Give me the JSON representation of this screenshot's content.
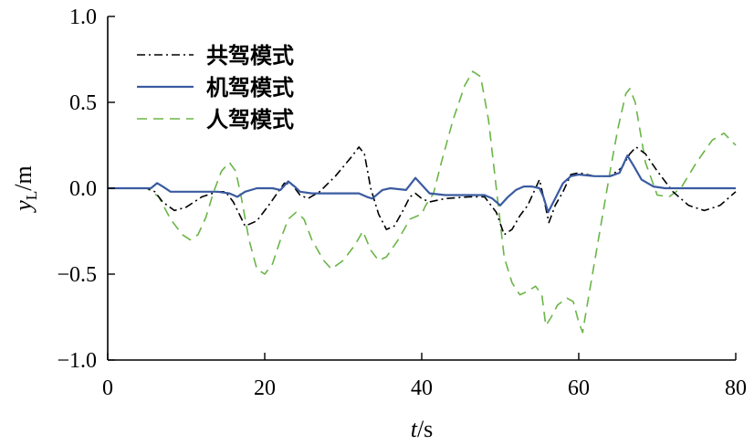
{
  "chart_data": {
    "type": "line",
    "title": "",
    "xlabel": "t/s",
    "ylabel": "yL/m",
    "xlim": [
      0,
      80
    ],
    "ylim": [
      -1.0,
      1.0
    ],
    "x_ticks": [
      0,
      20,
      40,
      60,
      80
    ],
    "x_tick_labels": [
      "0",
      "20",
      "40",
      "60",
      "80"
    ],
    "y_ticks": [
      1.0,
      0.5,
      0.0,
      -0.5,
      -1.0
    ],
    "y_tick_labels": [
      "1.0",
      "0.5",
      "0.0",
      "−0.5",
      "−1.0"
    ],
    "grid": false,
    "legend_position": "top-left",
    "series": [
      {
        "name": "共驾模式",
        "color": "#000000",
        "dash": "dashdot",
        "points": [
          [
            0,
            0
          ],
          [
            5,
            0
          ],
          [
            6,
            -0.02
          ],
          [
            7,
            -0.08
          ],
          [
            8.5,
            -0.13
          ],
          [
            10,
            -0.11
          ],
          [
            12,
            -0.05
          ],
          [
            14,
            -0.02
          ],
          [
            15,
            -0.02
          ],
          [
            16,
            -0.08
          ],
          [
            17.5,
            -0.22
          ],
          [
            19,
            -0.19
          ],
          [
            20.5,
            -0.1
          ],
          [
            22.5,
            0.03
          ],
          [
            23.5,
            0.02
          ],
          [
            24.5,
            -0.04
          ],
          [
            25.5,
            -0.06
          ],
          [
            27,
            -0.02
          ],
          [
            29,
            0.07
          ],
          [
            31,
            0.18
          ],
          [
            32,
            0.24
          ],
          [
            32.7,
            0.2
          ],
          [
            33.5,
            0.0
          ],
          [
            34.5,
            -0.15
          ],
          [
            35.5,
            -0.24
          ],
          [
            36.5,
            -0.22
          ],
          [
            37.5,
            -0.14
          ],
          [
            38.5,
            -0.05
          ],
          [
            39.2,
            -0.03
          ],
          [
            40,
            -0.06
          ],
          [
            41,
            -0.08
          ],
          [
            43,
            -0.06
          ],
          [
            46,
            -0.05
          ],
          [
            48,
            -0.05
          ],
          [
            49.5,
            -0.14
          ],
          [
            50.5,
            -0.27
          ],
          [
            51.5,
            -0.24
          ],
          [
            52.5,
            -0.16
          ],
          [
            53.5,
            -0.1
          ],
          [
            54.5,
            0.0
          ],
          [
            55,
            0.05
          ],
          [
            55.5,
            -0.05
          ],
          [
            56.2,
            -0.2
          ],
          [
            57,
            -0.1
          ],
          [
            58,
            -0.02
          ],
          [
            59,
            0.08
          ],
          [
            60,
            0.09
          ],
          [
            62,
            0.07
          ],
          [
            64,
            0.07
          ],
          [
            65.5,
            0.12
          ],
          [
            66.5,
            0.2
          ],
          [
            67.3,
            0.24
          ],
          [
            68.5,
            0.2
          ],
          [
            70,
            0.1
          ],
          [
            72,
            -0.02
          ],
          [
            74,
            -0.1
          ],
          [
            76,
            -0.13
          ],
          [
            78,
            -0.1
          ],
          [
            80,
            -0.02
          ]
        ]
      },
      {
        "name": "机驾模式",
        "color": "#3a5ba0",
        "dash": "solid",
        "points": [
          [
            0,
            0
          ],
          [
            5.5,
            0
          ],
          [
            6.3,
            0.03
          ],
          [
            7,
            0.01
          ],
          [
            8,
            -0.02
          ],
          [
            10,
            -0.02
          ],
          [
            14,
            -0.02
          ],
          [
            15.5,
            -0.03
          ],
          [
            16.5,
            -0.05
          ],
          [
            17.5,
            -0.02
          ],
          [
            19,
            0
          ],
          [
            21,
            0
          ],
          [
            22,
            -0.01
          ],
          [
            23,
            0.04
          ],
          [
            23.8,
            0.01
          ],
          [
            24.5,
            -0.02
          ],
          [
            26,
            -0.03
          ],
          [
            30,
            -0.03
          ],
          [
            32,
            -0.03
          ],
          [
            33,
            -0.05
          ],
          [
            33.7,
            -0.06
          ],
          [
            35,
            -0.01
          ],
          [
            36,
            0
          ],
          [
            38,
            -0.01
          ],
          [
            39.2,
            0.06
          ],
          [
            40,
            0.02
          ],
          [
            41,
            -0.03
          ],
          [
            43,
            -0.04
          ],
          [
            48,
            -0.04
          ],
          [
            49,
            -0.06
          ],
          [
            50,
            -0.1
          ],
          [
            51,
            -0.05
          ],
          [
            52,
            -0.01
          ],
          [
            53,
            0.01
          ],
          [
            54,
            0.01
          ],
          [
            55,
            0
          ],
          [
            55.5,
            -0.05
          ],
          [
            56.1,
            -0.14
          ],
          [
            57,
            -0.06
          ],
          [
            58,
            0.03
          ],
          [
            59,
            0.07
          ],
          [
            60,
            0.08
          ],
          [
            62,
            0.07
          ],
          [
            64,
            0.07
          ],
          [
            65.2,
            0.09
          ],
          [
            66.2,
            0.19
          ],
          [
            67,
            0.13
          ],
          [
            68,
            0.05
          ],
          [
            69.5,
            0.01
          ],
          [
            71,
            0
          ],
          [
            80,
            0
          ]
        ]
      },
      {
        "name": "人驾模式",
        "color": "#6ab547",
        "dash": "dashed",
        "points": [
          [
            0,
            0
          ],
          [
            5,
            0
          ],
          [
            6.5,
            -0.05
          ],
          [
            8,
            -0.18
          ],
          [
            9.5,
            -0.27
          ],
          [
            10.5,
            -0.3
          ],
          [
            11.5,
            -0.27
          ],
          [
            12.5,
            -0.17
          ],
          [
            13.5,
            -0.02
          ],
          [
            14.5,
            0.1
          ],
          [
            15.5,
            0.15
          ],
          [
            16.3,
            0.1
          ],
          [
            17,
            -0.05
          ],
          [
            18,
            -0.3
          ],
          [
            19,
            -0.47
          ],
          [
            20,
            -0.5
          ],
          [
            21,
            -0.44
          ],
          [
            22,
            -0.3
          ],
          [
            23,
            -0.18
          ],
          [
            24,
            -0.14
          ],
          [
            25,
            -0.18
          ],
          [
            26,
            -0.3
          ],
          [
            27.5,
            -0.42
          ],
          [
            28.5,
            -0.47
          ],
          [
            30,
            -0.42
          ],
          [
            31.5,
            -0.33
          ],
          [
            32.5,
            -0.25
          ],
          [
            33.5,
            -0.36
          ],
          [
            34.5,
            -0.42
          ],
          [
            35.5,
            -0.4
          ],
          [
            37,
            -0.3
          ],
          [
            38.5,
            -0.18
          ],
          [
            40,
            -0.15
          ],
          [
            40.5,
            -0.1
          ],
          [
            41.5,
            -0.03
          ],
          [
            42.5,
            0.15
          ],
          [
            44,
            0.4
          ],
          [
            45.5,
            0.6
          ],
          [
            46.5,
            0.68
          ],
          [
            47.5,
            0.65
          ],
          [
            48.5,
            0.4
          ],
          [
            49.5,
            0.0
          ],
          [
            50.5,
            -0.4
          ],
          [
            51.5,
            -0.55
          ],
          [
            52.5,
            -0.62
          ],
          [
            53.5,
            -0.6
          ],
          [
            54.5,
            -0.57
          ],
          [
            55.3,
            -0.62
          ],
          [
            55.8,
            -0.8
          ],
          [
            56.5,
            -0.75
          ],
          [
            57.3,
            -0.68
          ],
          [
            58.5,
            -0.64
          ],
          [
            59.3,
            -0.66
          ],
          [
            60,
            -0.78
          ],
          [
            60.5,
            -0.84
          ],
          [
            61,
            -0.7
          ],
          [
            62.5,
            -0.3
          ],
          [
            64,
            0.1
          ],
          [
            65,
            0.35
          ],
          [
            66,
            0.55
          ],
          [
            66.5,
            0.58
          ],
          [
            67.2,
            0.5
          ],
          [
            68.5,
            0.15
          ],
          [
            70,
            -0.04
          ],
          [
            71.5,
            -0.05
          ],
          [
            73,
            0.0
          ],
          [
            75,
            0.15
          ],
          [
            77,
            0.28
          ],
          [
            78.5,
            0.32
          ],
          [
            80,
            0.25
          ]
        ]
      }
    ]
  }
}
